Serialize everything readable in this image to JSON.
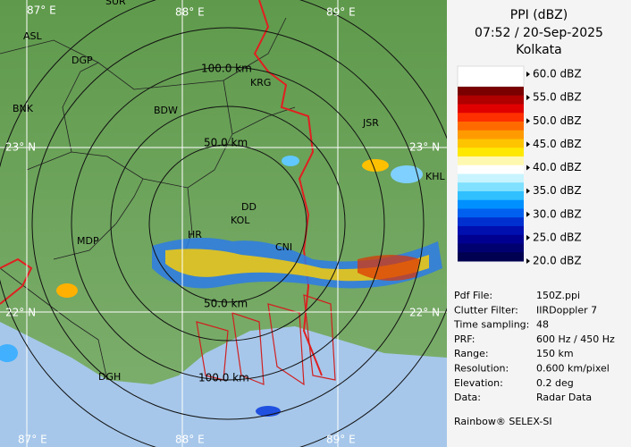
{
  "header": {
    "lines": [
      "PPI (dBZ)",
      "07:52 / 20-Sep-2025",
      "Kolkata"
    ]
  },
  "legend": {
    "labels": [
      "60.0 dBZ",
      "55.0 dBZ",
      "50.0 dBZ",
      "45.0 dBZ",
      "40.0 dBZ",
      "35.0 dBZ",
      "30.0 dBZ",
      "25.0 dBZ",
      "20.0 dBZ"
    ],
    "colors": [
      "#7a0000",
      "#b00000",
      "#e00000",
      "#ff3000",
      "#ff6a00",
      "#ff9a00",
      "#ffc400",
      "#ffe800",
      "#fff8b0",
      "#ffffff",
      "#c8f4ff",
      "#80e0ff",
      "#30c0ff",
      "#0090ff",
      "#0060f0",
      "#0030d0",
      "#0010b0",
      "#000090",
      "#000070",
      "#000050"
    ]
  },
  "info": {
    "rows": [
      [
        "Pdf File:",
        "150Z.ppi"
      ],
      [
        "Clutter Filter:",
        "IIRDoppler 7"
      ],
      [
        "Time sampling:",
        "48"
      ],
      [
        "PRF:",
        "600 Hz / 450 Hz"
      ],
      [
        "Range:",
        "150 km"
      ],
      [
        "Resolution:",
        "0.600 km/pixel"
      ],
      [
        "Elevation:",
        "0.2 deg"
      ],
      [
        "Data:",
        "Radar Data"
      ]
    ],
    "footer": "Rainbow® SELEX-SI"
  },
  "map": {
    "grid_labels": [
      "87° E",
      "88° E",
      "89° E",
      "23° N",
      "23° N",
      "22° N",
      "22° N",
      "87° E",
      "88° E",
      "89° E"
    ],
    "range_labels": [
      "100.0 km",
      "50.0 km",
      "50.0 km",
      "100.0 km"
    ],
    "places": [
      "SUR",
      "ASL",
      "DGP",
      "BNK",
      "BDW",
      "KRG",
      "JSR",
      "MDP",
      "HR",
      "KOL",
      "DD",
      "CNI",
      "DGH",
      "KHL"
    ]
  }
}
